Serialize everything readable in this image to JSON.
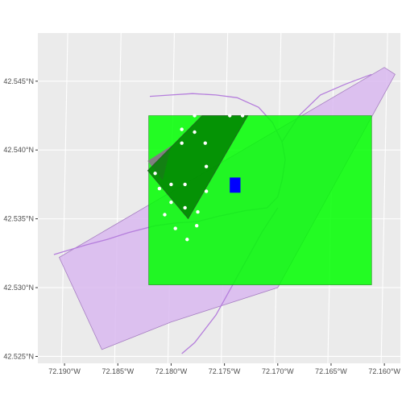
{
  "map": {
    "panel_background": "#ebebeb",
    "grid_color": "#ffffff",
    "lon_range": [
      -72.1925,
      -72.1585
    ],
    "lat_range": [
      42.5245,
      42.5485
    ],
    "y_ticks": [
      {
        "value": 42.545,
        "label": "42.545°N"
      },
      {
        "value": 42.54,
        "label": "42.540°N"
      },
      {
        "value": 42.535,
        "label": "42.535°N"
      },
      {
        "value": 42.53,
        "label": "42.530°N"
      },
      {
        "value": 42.525,
        "label": "42.525°N"
      }
    ],
    "x_ticks": [
      {
        "value": -72.19,
        "label": "72.190°W"
      },
      {
        "value": -72.185,
        "label": "72.185°W"
      },
      {
        "value": -72.18,
        "label": "72.180°W"
      },
      {
        "value": -72.175,
        "label": "72.175°W"
      },
      {
        "value": -72.17,
        "label": "72.170°W"
      },
      {
        "value": -72.165,
        "label": "72.165°W"
      },
      {
        "value": -72.16,
        "label": "72.160°W"
      }
    ],
    "layers": {
      "outer_boundary": {
        "fill": "#d9b8f0",
        "stroke": "#a77fc2",
        "coords": [
          [
            -72.1905,
            42.5322
          ],
          [
            -72.16,
            42.546
          ],
          [
            -72.159,
            42.5455
          ],
          [
            -72.17,
            42.53
          ],
          [
            -72.18,
            42.5275
          ],
          [
            -72.1865,
            42.5255
          ],
          [
            -72.1905,
            42.5322
          ]
        ]
      },
      "green_rectangle": {
        "fill": "#00ff00",
        "stroke": "#228b22",
        "coords": [
          [
            -72.1821,
            42.5425
          ],
          [
            -72.1612,
            42.5425
          ],
          [
            -72.1612,
            42.5302
          ],
          [
            -72.1821,
            42.5302
          ]
        ]
      },
      "dark_triangle": {
        "fill": "#008000",
        "stroke": "#2f4f2f",
        "coords": [
          [
            -72.1771,
            42.5425
          ],
          [
            -72.1728,
            42.5425
          ],
          [
            -72.1784,
            42.535
          ],
          [
            -72.1822,
            42.5385
          ]
        ]
      },
      "gray_wedge": {
        "fill": "#808080",
        "coords": [
          [
            -72.1822,
            42.5392
          ],
          [
            -72.18,
            42.5403
          ],
          [
            -72.1808,
            42.5378
          ]
        ]
      },
      "blue_square": {
        "fill": "#0000ff",
        "coords": [
          [
            -72.1745,
            42.538
          ],
          [
            -72.1735,
            42.538
          ],
          [
            -72.1735,
            42.5369
          ],
          [
            -72.1745,
            42.5369
          ]
        ]
      },
      "streams": [
        {
          "color": "#b57edc",
          "coords": [
            [
              -72.191,
              42.5324
            ],
            [
              -72.188,
              42.5331
            ],
            [
              -72.186,
              42.5335
            ],
            [
              -72.184,
              42.534
            ],
            [
              -72.1815,
              42.5345
            ],
            [
              -72.1795,
              42.5347
            ],
            [
              -72.1775,
              42.5348
            ],
            [
              -72.1755,
              42.5352
            ],
            [
              -72.173,
              42.5356
            ],
            [
              -72.171,
              42.5358
            ],
            [
              -72.17,
              42.5366
            ],
            [
              -72.1696,
              42.5378
            ],
            [
              -72.1693,
              42.5393
            ],
            [
              -72.1696,
              42.5406
            ],
            [
              -72.1705,
              42.542
            ],
            [
              -72.1718,
              42.5431
            ],
            [
              -72.1738,
              42.5438
            ],
            [
              -72.1758,
              42.544
            ],
            [
              -72.178,
              42.5441
            ],
            [
              -72.18,
              42.544
            ],
            [
              -72.182,
              42.5439
            ]
          ]
        },
        {
          "color": "#b57edc",
          "coords": [
            [
              -72.17,
              42.5358
            ],
            [
              -72.1715,
              42.534
            ],
            [
              -72.1738,
              42.5308
            ],
            [
              -72.1758,
              42.528
            ],
            [
              -72.1778,
              42.526
            ],
            [
              -72.179,
              42.5252
            ]
          ]
        },
        {
          "color": "#b57edc",
          "coords": [
            [
              -72.1696,
              42.5406
            ],
            [
              -72.168,
              42.5425
            ],
            [
              -72.166,
              42.544
            ],
            [
              -72.1636,
              42.5448
            ],
            [
              -72.1612,
              42.5455
            ]
          ]
        }
      ],
      "points_color": "#ffffff",
      "points": [
        [
          -72.1778,
          42.5425
        ],
        [
          -72.1745,
          42.5425
        ],
        [
          -72.1733,
          42.5425
        ],
        [
          -72.179,
          42.5415
        ],
        [
          -72.1778,
          42.5413
        ],
        [
          -72.179,
          42.5405
        ],
        [
          -72.1768,
          42.5405
        ],
        [
          -72.1815,
          42.5383
        ],
        [
          -72.18,
          42.5375
        ],
        [
          -72.1787,
          42.5375
        ],
        [
          -72.1767,
          42.5388
        ],
        [
          -72.1811,
          42.5372
        ],
        [
          -72.18,
          42.5362
        ],
        [
          -72.1787,
          42.5358
        ],
        [
          -72.1767,
          42.537
        ],
        [
          -72.1806,
          42.5353
        ],
        [
          -72.1775,
          42.5355
        ],
        [
          -72.1796,
          42.5343
        ],
        [
          -72.1776,
          42.5345
        ],
        [
          -72.1785,
          42.5335
        ]
      ]
    }
  }
}
